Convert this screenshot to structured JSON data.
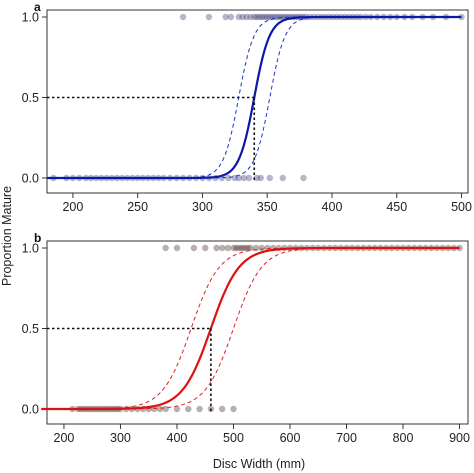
{
  "figure": {
    "ylabel": "Proportion Mature",
    "xlabel": "Disc Width (mm)"
  },
  "chart_data": [
    {
      "panel": "a",
      "type": "line",
      "xlim": [
        180,
        505
      ],
      "ylim": [
        0,
        1
      ],
      "xticks": [
        200,
        250,
        300,
        350,
        400,
        450,
        500
      ],
      "yticks": [
        0.0,
        0.5,
        1.0
      ],
      "ytick_labels": [
        "0.0",
        "0.5",
        "1.0"
      ],
      "line_color": "#0a1aa8",
      "band_color": "#1a33cc",
      "point_color": "#2a2a6a",
      "dw50": 340,
      "fit": {
        "x50": 340,
        "k": 0.17
      },
      "ci_lower": {
        "x50": 352,
        "k": 0.17
      },
      "ci_upper": {
        "x50": 328,
        "k": 0.17
      },
      "points_mature": [
        285,
        305,
        318,
        322,
        328,
        331,
        334,
        337,
        340,
        342,
        344,
        346,
        348,
        350,
        352,
        354,
        356,
        358,
        360,
        362,
        364,
        366,
        368,
        370,
        372,
        374,
        376,
        378,
        380,
        383,
        386,
        389,
        392,
        395,
        398,
        401,
        404,
        407,
        410,
        413,
        416,
        419,
        422,
        426,
        430,
        435,
        440,
        445,
        450,
        456,
        462,
        470,
        478,
        488,
        500
      ],
      "points_immature": [
        185,
        195,
        200,
        205,
        210,
        214,
        218,
        222,
        226,
        230,
        234,
        238,
        242,
        246,
        250,
        254,
        258,
        262,
        266,
        270,
        275,
        280,
        285,
        290,
        295,
        300,
        305,
        310,
        315,
        320,
        325,
        328,
        332,
        336,
        342,
        345,
        352,
        362,
        378
      ]
    },
    {
      "panel": "b",
      "type": "line",
      "xlim": [
        170,
        915
      ],
      "ylim": [
        0,
        1
      ],
      "xticks": [
        200,
        300,
        400,
        500,
        600,
        700,
        800,
        900
      ],
      "yticks": [
        0.0,
        0.5,
        1.0
      ],
      "ytick_labels": [
        "0.0",
        "0.5",
        "1.0"
      ],
      "line_color": "#dd1111",
      "band_color": "#e02020",
      "point_color": "#3a1a1a",
      "dw50": 460,
      "fit": {
        "x50": 460,
        "k": 0.04
      },
      "ci_lower": {
        "x50": 500,
        "k": 0.04
      },
      "ci_upper": {
        "x50": 425,
        "k": 0.04
      },
      "points_mature": [
        380,
        400,
        430,
        450,
        470,
        480,
        490,
        500,
        505,
        510,
        515,
        520,
        525,
        530,
        540,
        550,
        560,
        570,
        580,
        590,
        600,
        610,
        620,
        630,
        640,
        650,
        660,
        670,
        680,
        690,
        700,
        710,
        720,
        730,
        740,
        750,
        760,
        770,
        780,
        790,
        800,
        810,
        820,
        830,
        840,
        850,
        860,
        870,
        880,
        890,
        900
      ],
      "points_immature": [
        215,
        225,
        230,
        235,
        240,
        245,
        250,
        255,
        260,
        265,
        270,
        275,
        280,
        285,
        290,
        295,
        300,
        310,
        320,
        330,
        340,
        350,
        360,
        370,
        380,
        400,
        420,
        440,
        460,
        480,
        500
      ]
    }
  ]
}
